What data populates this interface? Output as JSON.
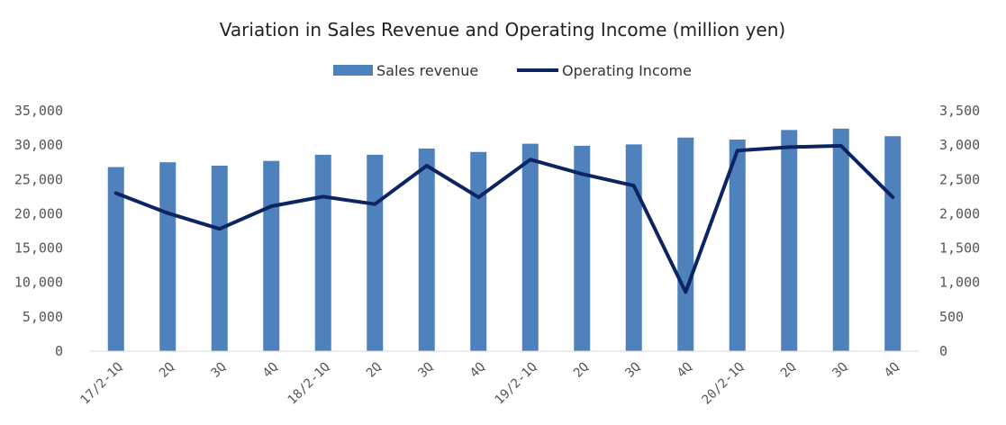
{
  "chart_data": {
    "type": "bar",
    "title": "Variation in Sales Revenue and Operating Income (million yen)",
    "categories": [
      "17/2-1Q",
      "2Q",
      "3Q",
      "4Q",
      "18/2-1Q",
      "2Q",
      "3Q",
      "4Q",
      "19/2-1Q",
      "2Q",
      "3Q",
      "4Q",
      "20/2-1Q",
      "2Q",
      "3Q",
      "4Q"
    ],
    "series": [
      {
        "name": "Sales revenue",
        "type": "bar",
        "axis": "left",
        "color": "#4f81bd",
        "values": [
          26800,
          27500,
          27000,
          27700,
          28600,
          28600,
          29500,
          29000,
          30200,
          29900,
          30100,
          31100,
          30800,
          32200,
          32400,
          31300
        ]
      },
      {
        "name": "Operating Income",
        "type": "line",
        "axis": "right",
        "color": "#0c2461",
        "values": [
          2300,
          2010,
          1780,
          2110,
          2250,
          2140,
          2700,
          2240,
          2790,
          2580,
          2410,
          860,
          2920,
          2970,
          2990,
          2240
        ]
      }
    ],
    "y_left": {
      "ylim": [
        0,
        35000
      ],
      "ticks": [
        "0",
        "5,000",
        "10,000",
        "15,000",
        "20,000",
        "25,000",
        "30,000",
        "35,000"
      ]
    },
    "y_right": {
      "ylim": [
        0,
        3500
      ],
      "ticks": [
        "0",
        "500",
        "1,000",
        "1,500",
        "2,000",
        "2,500",
        "3,000",
        "3,500"
      ]
    },
    "xlabel": "",
    "ylabel": "",
    "grid": false,
    "legend_position": "top-center"
  }
}
